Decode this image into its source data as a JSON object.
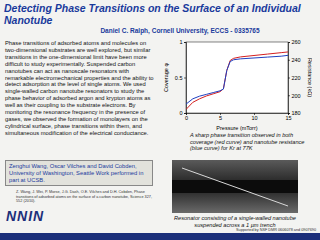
{
  "title": "Detecting Phase Transitions on the Surface of an Individual Nanotube",
  "author": "Daniel C. Ralph, Cornell University, ECCS - 0335765",
  "body": "Phase transitions of adsorbed atoms and molecules on two-dimensional substrates are well explored, but similar transitions in the one-dimensional limit have been more difficult to study experimentally. Suspended carbon nanotubes can act as nanoscale resonators with remarkable electromechanical properties and the ability to detect adsorption at the level of single atoms. We used single-walled carbon nanotube resonators to study the phase behavior of adsorbed argon and krypton atoms as well as their coupling to the substrate electrons. By monitoring the resonance frequency in the presence of gases, we observed the formation of monolayers on the cylindrical surface, phase transitions within them, and simultaneous modification of the electrical conductance.",
  "collaborators": "Zenghui Wang, Oscar Vilches and David Cobden, University of Washington, Seattle Work performed in part at UCSB.",
  "reference": "Z. Wang, J. Wei, P. Morse, J.G. Dash, O.E. Vilches and D.H. Cobden, Phase transitions of adsorbed atoms on the surface of a carbon nanotube, Science 327, 552 (2010).",
  "chart_caption": "A sharp phase transition observed in both coverage (red curve) and nanotube resistance (blue curve) for Kr at 77K",
  "image_caption": "Resonator consisting of a single-walled nanotube suspended across a 1 µm trench",
  "logo": "NNIN",
  "footer": "Supported by NSF DMR 0606078 and 0907690",
  "chart_data": {
    "type": "line",
    "x_label": "Pressure (mTorr)",
    "y_label": "Coverage φ",
    "y2_label": "Resistance (kΩ)",
    "x": [
      0,
      1,
      2,
      3,
      4,
      5,
      5.5,
      6,
      6.5,
      7,
      8,
      10,
      12,
      14,
      15
    ],
    "xlim": [
      0,
      15
    ],
    "xticks": [
      0,
      5,
      10,
      15
    ],
    "ylim": [
      0,
      1
    ],
    "yticks": [
      0,
      0.5,
      1
    ],
    "y2lim": [
      180,
      260
    ],
    "y2ticks": [
      180,
      200,
      220,
      240,
      260
    ],
    "series": [
      {
        "color": "#d42020",
        "values": [
          0.05,
          0.15,
          0.2,
          0.24,
          0.27,
          0.3,
          0.34,
          0.6,
          0.74,
          0.77,
          0.79,
          0.81,
          0.83,
          0.85,
          0.86
        ]
      },
      {
        "color": "#2040c0",
        "axis": "y2",
        "values": [
          190,
          196,
          199,
          201,
          203,
          205,
          207,
          228,
          238,
          240,
          241,
          242,
          243,
          244,
          245
        ]
      }
    ]
  }
}
